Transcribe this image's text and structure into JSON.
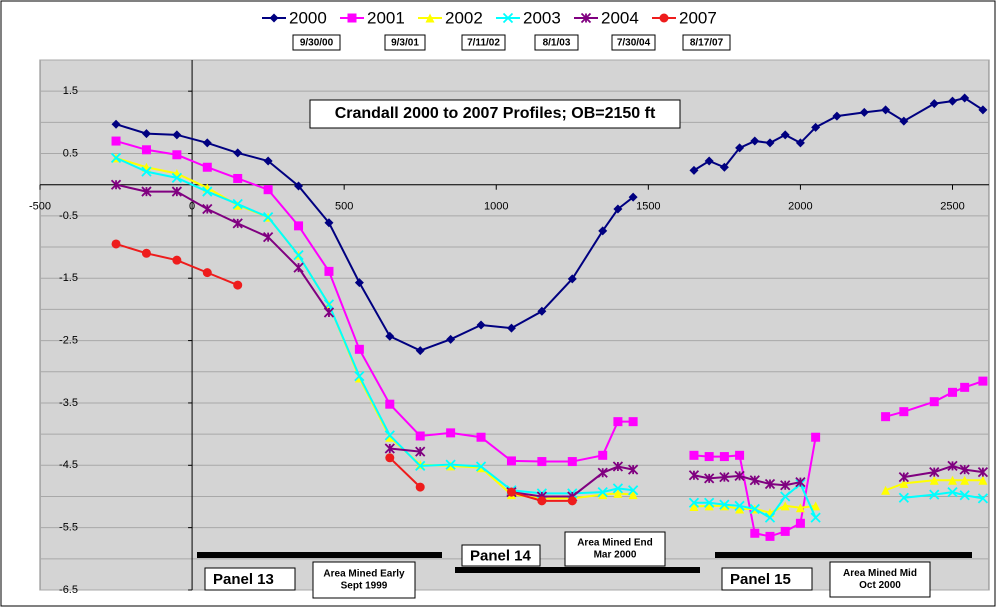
{
  "chart_data": {
    "type": "line",
    "title": "Crandall 2000 to 2007 Profiles; OB=2150 ft",
    "x": [
      -250,
      -150,
      -50,
      50,
      150,
      250,
      350,
      450,
      550,
      650,
      750,
      850,
      950,
      1050,
      1150,
      1250,
      1350,
      1400,
      1450,
      1550,
      1650,
      1700,
      1750,
      1800,
      1850,
      1900,
      1950,
      2000,
      2050,
      2120,
      2210,
      2280,
      2340,
      2440,
      2500,
      2540,
      2600
    ],
    "series": [
      {
        "name": "2000",
        "date": "9/30/00",
        "color": "#000080",
        "marker": "diamond",
        "values": [
          0.97,
          0.82,
          0.8,
          0.67,
          0.51,
          0.38,
          -0.02,
          -0.61,
          -1.57,
          -2.43,
          -2.66,
          -2.48,
          -2.25,
          -2.3,
          -2.03,
          -1.51,
          -0.74,
          -0.39,
          -0.2,
          null,
          0.23,
          0.38,
          0.28,
          0.59,
          0.7,
          0.67,
          0.8,
          0.67,
          0.92,
          1.1,
          1.16,
          1.2,
          1.02,
          1.3,
          1.34,
          1.39,
          1.2
        ]
      },
      {
        "name": "2001",
        "date": "9/3/01",
        "color": "#ff00ff",
        "marker": "square",
        "values": [
          0.7,
          0.56,
          0.48,
          0.28,
          0.1,
          -0.08,
          -0.66,
          -1.39,
          -2.64,
          -3.52,
          -4.03,
          -3.98,
          -4.05,
          -4.43,
          -4.44,
          -4.44,
          -4.34,
          -3.8,
          -3.8,
          null,
          -4.34,
          -4.36,
          -4.36,
          -4.34,
          -5.59,
          -5.64,
          -5.56,
          -5.43,
          -4.05,
          null,
          null,
          -3.72,
          -3.64,
          -3.48,
          -3.33,
          -3.25,
          -3.15
        ]
      },
      {
        "name": "2002",
        "date": "7/11/02",
        "color": "#ffff00",
        "marker": "triangle",
        "values": [
          0.43,
          0.28,
          0.18,
          -0.05,
          -0.33,
          -0.52,
          -1.13,
          -1.92,
          -3.1,
          -4.05,
          -4.49,
          -4.51,
          -4.54,
          -4.97,
          -5.03,
          -5.03,
          -4.97,
          -4.95,
          -4.97,
          null,
          -5.16,
          -5.15,
          -5.15,
          -5.2,
          -5.2,
          -5.26,
          -5.15,
          -5.18,
          -5.15,
          null,
          null,
          -4.9,
          -4.79,
          -4.74,
          -4.74,
          -4.74,
          -4.74
        ]
      },
      {
        "name": "2003",
        "date": "8/1/03",
        "color": "#00ffff",
        "marker": "cross",
        "values": [
          0.43,
          0.21,
          0.11,
          -0.11,
          -0.31,
          -0.52,
          -1.13,
          -1.92,
          -3.07,
          -4.02,
          -4.51,
          -4.49,
          -4.52,
          -4.9,
          -4.95,
          -4.95,
          -4.93,
          -4.87,
          -4.9,
          null,
          -5.1,
          -5.1,
          -5.13,
          -5.15,
          -5.2,
          -5.34,
          -5.0,
          -4.8,
          -5.34,
          null,
          null,
          null,
          -5.02,
          -4.97,
          -4.93,
          -4.98,
          -5.03
        ]
      },
      {
        "name": "2004",
        "date": "7/30/04",
        "color": "#800080",
        "marker": "star",
        "values": [
          0.0,
          -0.11,
          -0.11,
          -0.39,
          -0.62,
          -0.84,
          -1.33,
          -2.05,
          null,
          -4.23,
          -4.28,
          null,
          null,
          -4.93,
          -5.0,
          -5.0,
          -4.62,
          -4.52,
          -4.57,
          null,
          -4.66,
          -4.71,
          -4.69,
          -4.67,
          -4.74,
          -4.8,
          -4.82,
          -4.77,
          null,
          null,
          null,
          null,
          -4.69,
          -4.61,
          -4.51,
          -4.57,
          -4.61
        ]
      },
      {
        "name": "2007",
        "date": "8/17/07",
        "color": "#ee1c1c",
        "marker": "circle",
        "values": [
          -0.95,
          -1.1,
          -1.21,
          -1.41,
          -1.61,
          null,
          null,
          null,
          null,
          -4.38,
          -4.85,
          null,
          null,
          -4.93,
          -5.07,
          -5.07,
          null,
          null,
          null,
          null,
          null,
          null,
          null,
          null,
          null,
          null,
          null,
          null,
          null,
          null,
          null,
          null,
          null,
          null,
          null,
          null,
          null
        ]
      }
    ],
    "xlim": [
      -500,
      2620
    ],
    "xticks": [
      -500,
      0,
      500,
      1000,
      1500,
      2000,
      2500
    ],
    "ylim": [
      -6.5,
      2.0
    ],
    "yticks": [
      -6.5,
      -5.5,
      -4.5,
      -3.5,
      -2.5,
      -1.5,
      -0.5,
      0.5,
      1.5
    ],
    "y_minor_gridlines": [
      -6,
      -5,
      -4,
      -3,
      -2,
      -1,
      0,
      1,
      2
    ],
    "grid": true,
    "legend_position": "top",
    "annotations": [
      [
        "Panel 13"
      ],
      [
        "Area Mined Early",
        "Sept 1999"
      ],
      [
        "Panel 14"
      ],
      [
        "Area Mined End",
        "Mar 2000"
      ],
      [
        "Panel 15"
      ],
      [
        "Area Mined Mid",
        "Oct 2000"
      ]
    ]
  }
}
